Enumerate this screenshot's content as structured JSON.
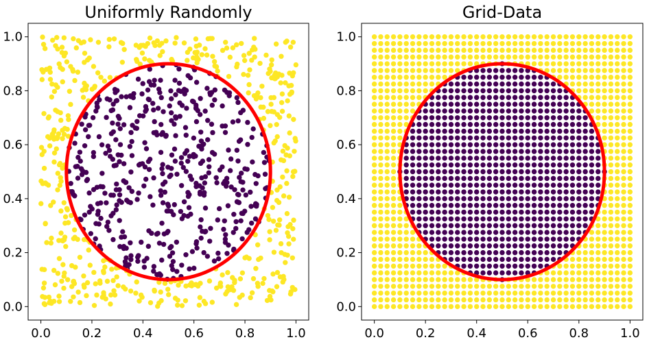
{
  "chart_data": [
    {
      "type": "scatter",
      "title": "Uniformly Randomly",
      "sampling": "uniform-random",
      "point_count": 1000,
      "xlim": [
        -0.05,
        1.05
      ],
      "ylim": [
        -0.05,
        1.05
      ],
      "xticks": [
        0.0,
        0.2,
        0.4,
        0.6,
        0.8,
        1.0
      ],
      "yticks": [
        0.0,
        0.2,
        0.4,
        0.6,
        0.8,
        1.0
      ],
      "tick_labels": [
        "0.0",
        "0.2",
        "0.4",
        "0.6",
        "0.8",
        "1.0"
      ],
      "grid": false,
      "circle": {
        "cx": 0.5,
        "cy": 0.5,
        "r": 0.4
      },
      "series": [
        {
          "label": "inside",
          "color": "#440154",
          "rule": "distance to (0.5, 0.5) <= 0.4"
        },
        {
          "label": "outside",
          "color": "#fde725",
          "rule": "distance to (0.5, 0.5) > 0.4"
        }
      ],
      "boundary_color": "#ff0000"
    },
    {
      "type": "scatter",
      "title": "Grid-Data",
      "sampling": "grid",
      "grid_points_per_axis": 41,
      "grid_spacing": 0.025,
      "xlim": [
        -0.05,
        1.05
      ],
      "ylim": [
        -0.05,
        1.05
      ],
      "xticks": [
        0.0,
        0.2,
        0.4,
        0.6,
        0.8,
        1.0
      ],
      "yticks": [
        0.0,
        0.2,
        0.4,
        0.6,
        0.8,
        1.0
      ],
      "tick_labels": [
        "0.0",
        "0.2",
        "0.4",
        "0.6",
        "0.8",
        "1.0"
      ],
      "grid": false,
      "circle": {
        "cx": 0.5,
        "cy": 0.5,
        "r": 0.4
      },
      "series": [
        {
          "label": "inside",
          "color": "#440154",
          "rule": "distance to (0.5, 0.5) <= 0.4"
        },
        {
          "label": "outside",
          "color": "#fde725",
          "rule": "distance to (0.5, 0.5) > 0.4"
        }
      ],
      "boundary_color": "#ff0000"
    }
  ]
}
